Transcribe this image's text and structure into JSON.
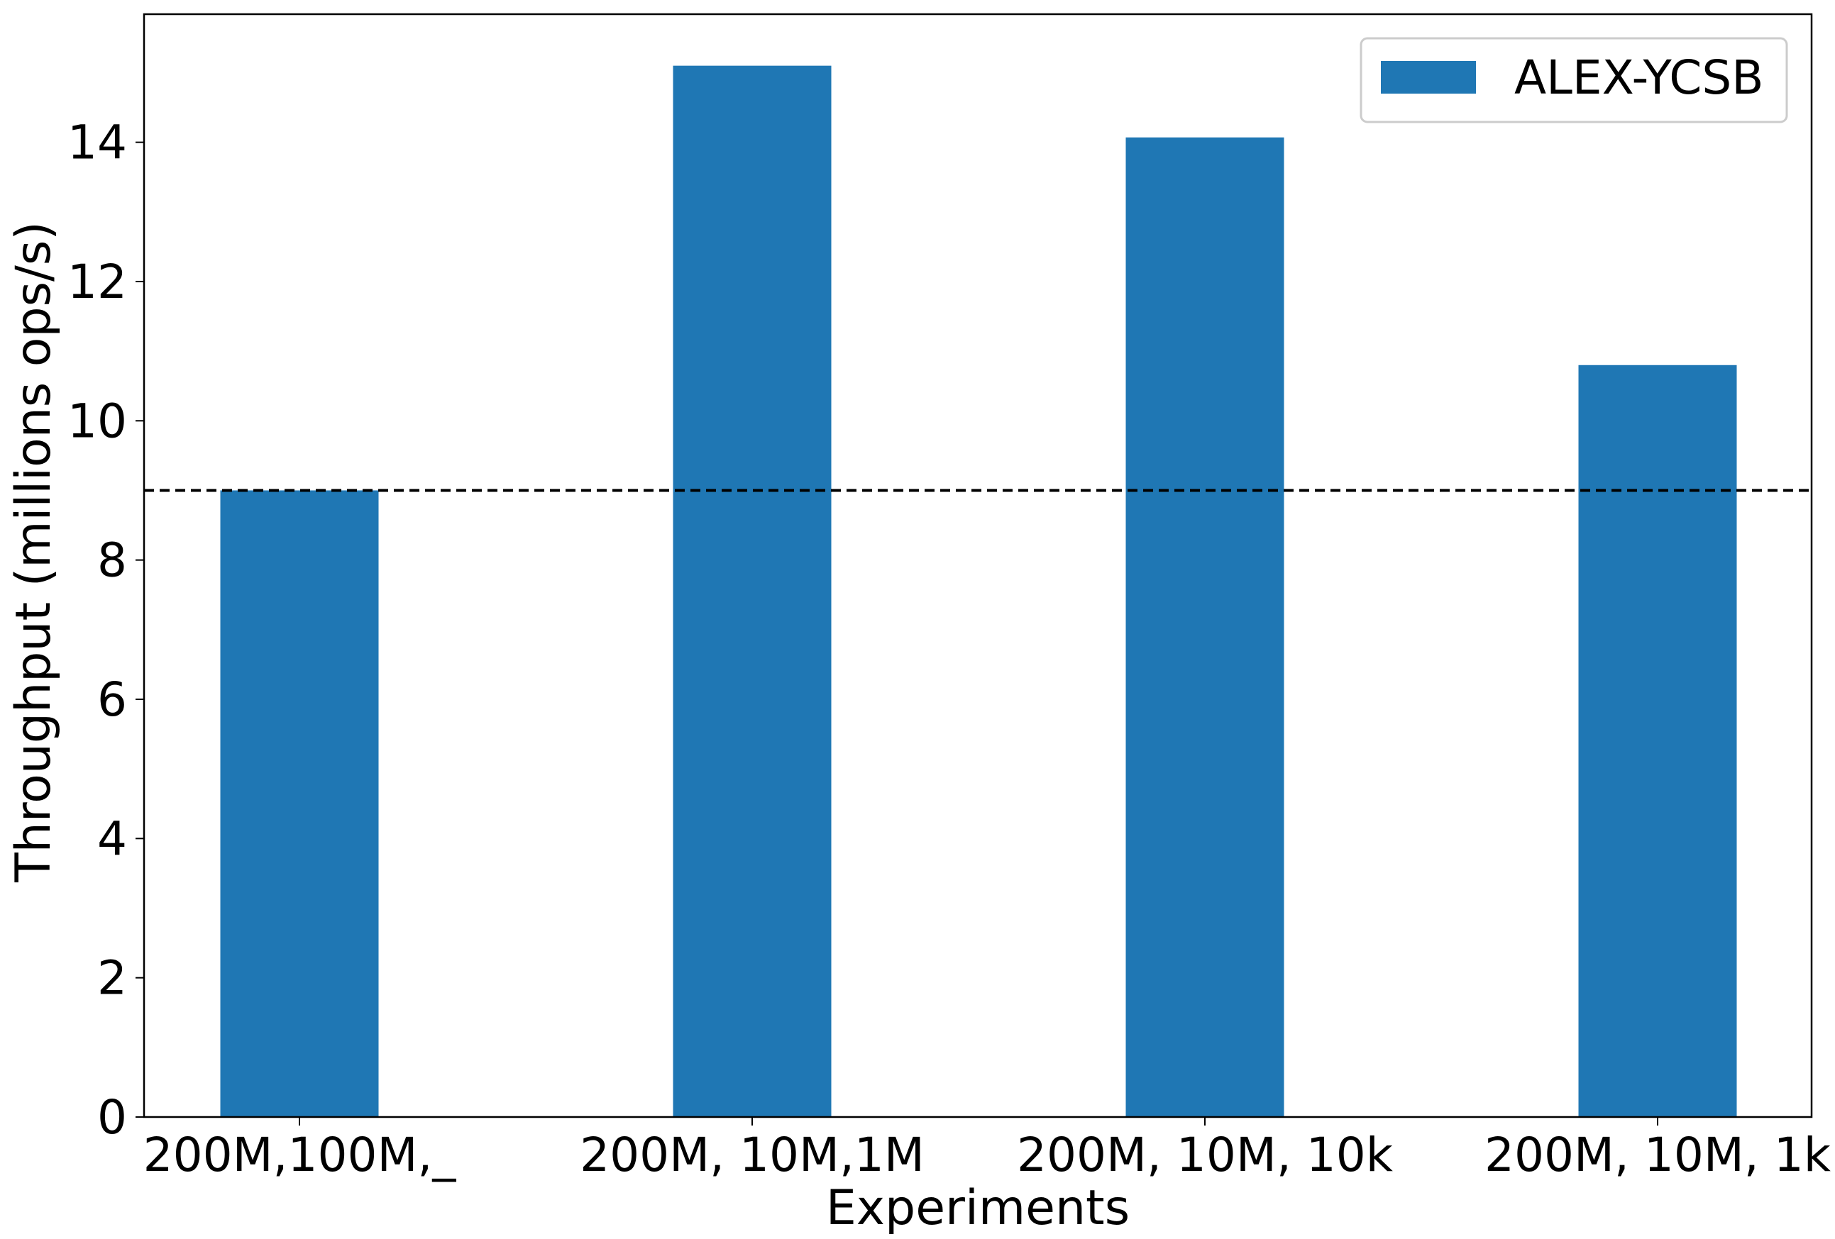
{
  "chart_data": {
    "type": "bar",
    "categories": [
      "200M,100M,_",
      "200M, 10M,1M",
      "200M, 10M, 10k",
      "200M, 10M, 1k"
    ],
    "series": [
      {
        "name": "ALEX-YCSB",
        "values": [
          9.0,
          15.1,
          14.07,
          10.8
        ],
        "color": "#1f77b4"
      }
    ],
    "xlabel": "Experiments",
    "ylabel": "Throughput (millions ops/s)",
    "ylim": [
      0,
      15.84
    ],
    "yticks": [
      0,
      2,
      4,
      6,
      8,
      10,
      12,
      14
    ],
    "reference_line": {
      "y": 9.0,
      "style": "dashed",
      "color": "#000000"
    },
    "legend": {
      "position": "top-right"
    },
    "grid": false
  }
}
